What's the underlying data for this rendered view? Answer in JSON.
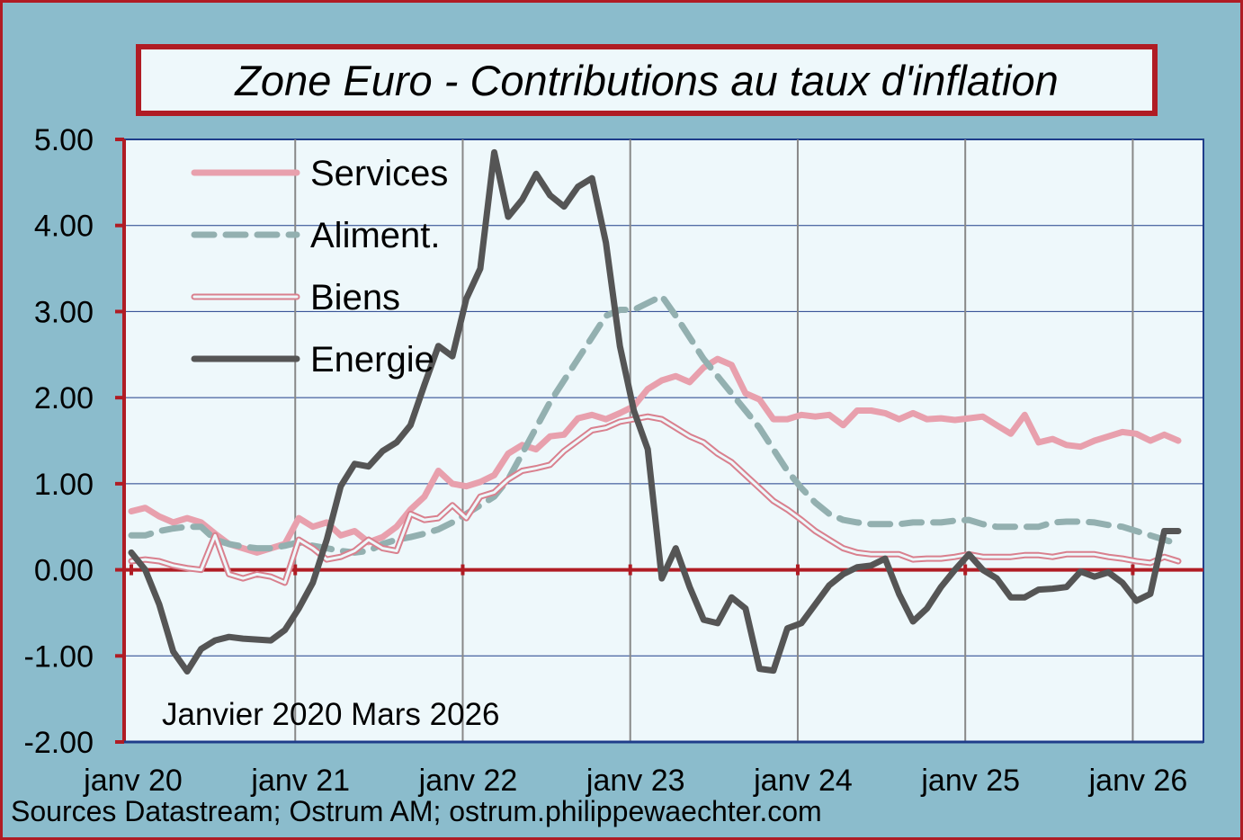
{
  "title": "Zone Euro - Contributions au taux d'inflation",
  "note": "Janvier 2020 Mars 2026",
  "source": "Sources Datastream; Ostrum AM; ostrum.philippewaechter.com",
  "colors": {
    "background": "#8bbccc",
    "plot_background": "#eef8fb",
    "frame": "#b01c24",
    "services": "#e8a0ad",
    "aliment": "#93b0b0",
    "biens": "#d9808e",
    "energie": "#555555",
    "zero_line": "#b01c24",
    "grid": "#888888"
  },
  "chart_data": {
    "type": "line",
    "title": "Zone Euro - Contributions au taux d'inflation",
    "x_start": "2020-01",
    "x_end": "2026-03",
    "x_tick_labels": [
      "janv 20",
      "janv 21",
      "janv 22",
      "janv 23",
      "janv 24",
      "janv 25",
      "janv 26"
    ],
    "y_tick_labels": [
      "5.00",
      "4.00",
      "3.00",
      "2.00",
      "1.00",
      "0.00",
      "-1.00",
      "-2.00"
    ],
    "ylim": [
      -2,
      5
    ],
    "grid": "vertical at each January, horizontal at each unit",
    "legend_position": "top-left",
    "series": [
      {
        "name": "Services",
        "style": "thick",
        "values": [
          0.68,
          0.72,
          0.62,
          0.55,
          0.6,
          0.55,
          0.42,
          0.3,
          0.25,
          0.2,
          0.25,
          0.3,
          0.6,
          0.5,
          0.55,
          0.4,
          0.45,
          0.32,
          0.38,
          0.5,
          0.7,
          0.85,
          1.15,
          1.0,
          0.97,
          1.02,
          1.1,
          1.35,
          1.45,
          1.4,
          1.55,
          1.57,
          1.76,
          1.8,
          1.75,
          1.82,
          1.9,
          2.1,
          2.2,
          2.25,
          2.18,
          2.35,
          2.45,
          2.38,
          2.05,
          1.98,
          1.75,
          1.75,
          1.8,
          1.78,
          1.8,
          1.68,
          1.85,
          1.85,
          1.82,
          1.75,
          1.82,
          1.75,
          1.76,
          1.74,
          1.76,
          1.78,
          1.68,
          1.58,
          1.8,
          1.48,
          1.52,
          1.45,
          1.43,
          1.5,
          1.55,
          1.6,
          1.58,
          1.5,
          1.57,
          1.5
        ]
      },
      {
        "name": "Aliment.",
        "style": "dashed",
        "values": [
          0.4,
          0.4,
          0.45,
          0.48,
          0.5,
          0.5,
          0.35,
          0.3,
          0.27,
          0.25,
          0.25,
          0.28,
          0.32,
          0.28,
          0.25,
          0.22,
          0.2,
          0.22,
          0.3,
          0.35,
          0.38,
          0.42,
          0.47,
          0.55,
          0.65,
          0.75,
          0.85,
          1.05,
          1.35,
          1.65,
          1.95,
          2.2,
          2.45,
          2.7,
          2.95,
          3.02,
          3.02,
          3.1,
          3.18,
          2.95,
          2.7,
          2.45,
          2.25,
          2.05,
          1.85,
          1.65,
          1.4,
          1.15,
          0.95,
          0.78,
          0.65,
          0.58,
          0.55,
          0.53,
          0.53,
          0.53,
          0.55,
          0.55,
          0.55,
          0.57,
          0.58,
          0.53,
          0.5,
          0.5,
          0.5,
          0.5,
          0.55,
          0.56,
          0.56,
          0.55,
          0.52,
          0.5,
          0.45,
          0.4,
          0.35,
          0.3
        ]
      },
      {
        "name": "Biens",
        "style": "double",
        "values": [
          0.1,
          0.12,
          0.1,
          0.05,
          0.02,
          0.0,
          0.4,
          -0.05,
          -0.1,
          -0.05,
          -0.08,
          -0.15,
          0.35,
          0.25,
          0.12,
          0.15,
          0.22,
          0.35,
          0.25,
          0.22,
          0.65,
          0.58,
          0.6,
          0.75,
          0.6,
          0.85,
          0.9,
          1.05,
          1.15,
          1.18,
          1.22,
          1.38,
          1.5,
          1.62,
          1.65,
          1.72,
          1.75,
          1.78,
          1.75,
          1.65,
          1.55,
          1.48,
          1.35,
          1.25,
          1.1,
          0.95,
          0.8,
          0.7,
          0.58,
          0.45,
          0.35,
          0.25,
          0.2,
          0.18,
          0.18,
          0.18,
          0.12,
          0.13,
          0.13,
          0.15,
          0.18,
          0.15,
          0.15,
          0.15,
          0.17,
          0.17,
          0.15,
          0.18,
          0.18,
          0.18,
          0.15,
          0.13,
          0.1,
          0.08,
          0.15,
          0.1
        ]
      },
      {
        "name": "Energie",
        "style": "thick",
        "values": [
          0.2,
          0.0,
          -0.4,
          -0.95,
          -1.18,
          -0.92,
          -0.82,
          -0.78,
          -0.8,
          -0.81,
          -0.82,
          -0.7,
          -0.45,
          -0.15,
          0.35,
          0.97,
          1.23,
          1.2,
          1.38,
          1.48,
          1.68,
          2.15,
          2.6,
          2.48,
          3.15,
          3.5,
          4.85,
          4.1,
          4.3,
          4.6,
          4.35,
          4.22,
          4.45,
          4.55,
          3.8,
          2.6,
          1.85,
          1.4,
          -0.1,
          0.25,
          -0.2,
          -0.58,
          -0.62,
          -0.32,
          -0.45,
          -1.15,
          -1.17,
          -0.68,
          -0.62,
          -0.4,
          -0.18,
          -0.05,
          0.03,
          0.05,
          0.13,
          -0.28,
          -0.6,
          -0.45,
          -0.2,
          0.0,
          0.18,
          0.0,
          -0.1,
          -0.32,
          -0.32,
          -0.23,
          -0.22,
          -0.2,
          -0.02,
          -0.08,
          -0.03,
          -0.15,
          -0.36,
          -0.28,
          0.45,
          0.45
        ]
      }
    ]
  }
}
